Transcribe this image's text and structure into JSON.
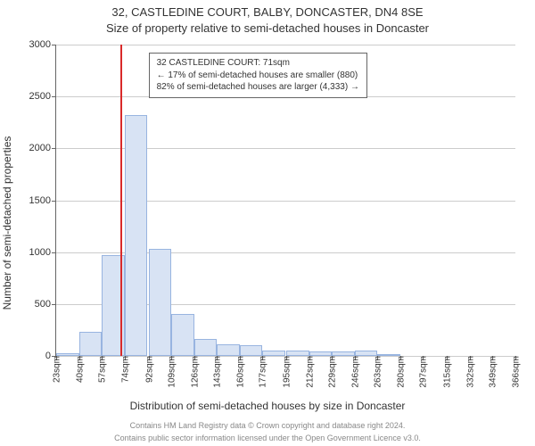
{
  "chart": {
    "type": "histogram",
    "title_main": "32, CASTLEDINE COURT, BALBY, DONCASTER, DN4 8SE",
    "title_sub": "Size of property relative to semi-detached houses in Doncaster",
    "title_fontsize": 13,
    "y_label": "Number of semi-detached properties",
    "x_label": "Distribution of semi-detached houses by size in Doncaster",
    "axis_label_fontsize": 12,
    "background_color": "#ffffff",
    "axis_color": "#666666",
    "grid_color": "#cccccc",
    "tick_fontsize": 11,
    "x_tick_fontsize": 10,
    "x_domain": [
      23,
      366
    ],
    "y_domain": [
      0,
      3000
    ],
    "y_ticks": [
      0,
      500,
      1000,
      1500,
      2000,
      2500,
      3000
    ],
    "x_ticks": [
      23,
      40,
      57,
      74,
      92,
      109,
      126,
      143,
      160,
      177,
      195,
      212,
      229,
      246,
      263,
      280,
      297,
      315,
      332,
      349,
      366
    ],
    "x_tick_suffix": "sqm",
    "bar_fill": "#d8e3f4",
    "bar_stroke": "#98b4e0",
    "bar_width_units": 17,
    "bars": [
      {
        "x": 23,
        "count": 30
      },
      {
        "x": 40,
        "count": 230
      },
      {
        "x": 57,
        "count": 970
      },
      {
        "x": 74,
        "count": 2320
      },
      {
        "x": 92,
        "count": 1030
      },
      {
        "x": 109,
        "count": 400
      },
      {
        "x": 126,
        "count": 160
      },
      {
        "x": 143,
        "count": 110
      },
      {
        "x": 160,
        "count": 100
      },
      {
        "x": 177,
        "count": 55
      },
      {
        "x": 195,
        "count": 55
      },
      {
        "x": 212,
        "count": 40
      },
      {
        "x": 229,
        "count": 40
      },
      {
        "x": 246,
        "count": 50
      },
      {
        "x": 263,
        "count": 20
      },
      {
        "x": 280,
        "count": 0
      },
      {
        "x": 297,
        "count": 0
      },
      {
        "x": 315,
        "count": 0
      },
      {
        "x": 332,
        "count": 0
      },
      {
        "x": 349,
        "count": 0
      }
    ],
    "marker": {
      "value": 71,
      "color": "#d92a2a",
      "width": 2
    },
    "info_box": {
      "line1": "32 CASTLEDINE COURT: 71sqm",
      "line2": "← 17% of semi-detached houses are smaller (880)",
      "line3": "82% of semi-detached houses are larger (4,333) →",
      "border_color": "#666666",
      "background_color": "#ffffff",
      "fontsize": 10,
      "pos_x_units": 92,
      "pos_y_units": 2920
    },
    "footer_line1": "Contains HM Land Registry data © Crown copyright and database right 2024.",
    "footer_line2": "Contains public sector information licensed under the Open Government Licence v3.0.",
    "footer_color": "#888888",
    "footer_fontsize": 9
  }
}
